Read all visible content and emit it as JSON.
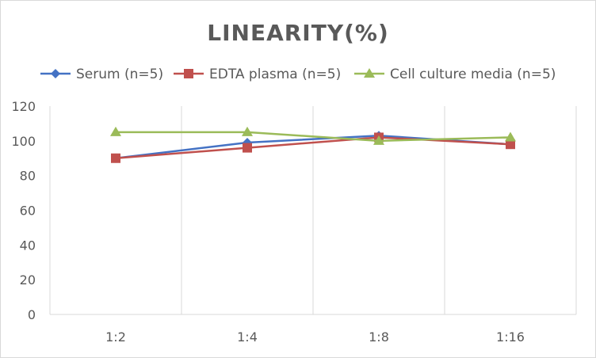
{
  "chart_data": {
    "type": "line",
    "title": "LINEARITY(%)",
    "categories": [
      "1:2",
      "1:4",
      "1:8",
      "1:16"
    ],
    "ylim": [
      0,
      120
    ],
    "yticks": [
      0,
      20,
      40,
      60,
      80,
      100,
      120
    ],
    "vertical_grid": true,
    "horizontal_grid": false,
    "legend_position": "top",
    "series": [
      {
        "name": "Serum (n=5)",
        "values": [
          90,
          99,
          103,
          98
        ],
        "color": "#4472c4",
        "marker": "diamond"
      },
      {
        "name": "EDTA plasma (n=5)",
        "values": [
          90,
          96,
          102,
          98
        ],
        "color": "#c0504d",
        "marker": "square"
      },
      {
        "name": "Cell culture media (n=5)",
        "values": [
          105,
          105,
          100,
          102
        ],
        "color": "#9bbb59",
        "marker": "triangle"
      }
    ]
  }
}
